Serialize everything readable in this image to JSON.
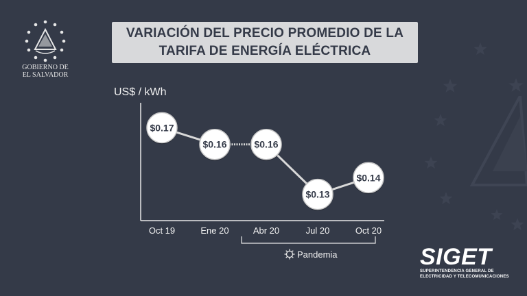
{
  "branding": {
    "government_line1": "GOBIERNO DE",
    "government_line2": "EL SALVADOR",
    "siget_name": "SIGET",
    "siget_line1": "SUPERINTENDENCIA GENERAL DE",
    "siget_line2": "ELECTRICIDAD Y TELECOMUNICACIONES"
  },
  "title_line1": "VARIACIÓN DEL PRECIO PROMEDIO DE LA",
  "title_line2": "TARIFA DE ENERGÍA ELÉCTRICA",
  "colors": {
    "background": "#343a48",
    "title_box": "#d8d9db",
    "line": "#d9d9d9",
    "marker_fill": "#ffffff",
    "text": "#f2f2f2"
  },
  "icons": {
    "pandemic": "virus-icon",
    "seal": "coat-of-arms-icon"
  },
  "chart_data": {
    "type": "line",
    "ylabel": "US$ / kWh",
    "categories": [
      "Oct 19",
      "Ene 20",
      "Abr 20",
      "Jul 20",
      "Oct 20"
    ],
    "values": [
      0.17,
      0.16,
      0.16,
      0.13,
      0.14
    ],
    "data_labels": [
      "$0.17",
      "$0.16",
      "$0.16",
      "$0.13",
      "$0.14"
    ],
    "ylim": [
      0.115,
      0.185
    ],
    "grid": false,
    "annotations": [
      {
        "text": "Pandemia",
        "from": "Abr 20",
        "to": "Oct 20"
      }
    ]
  }
}
